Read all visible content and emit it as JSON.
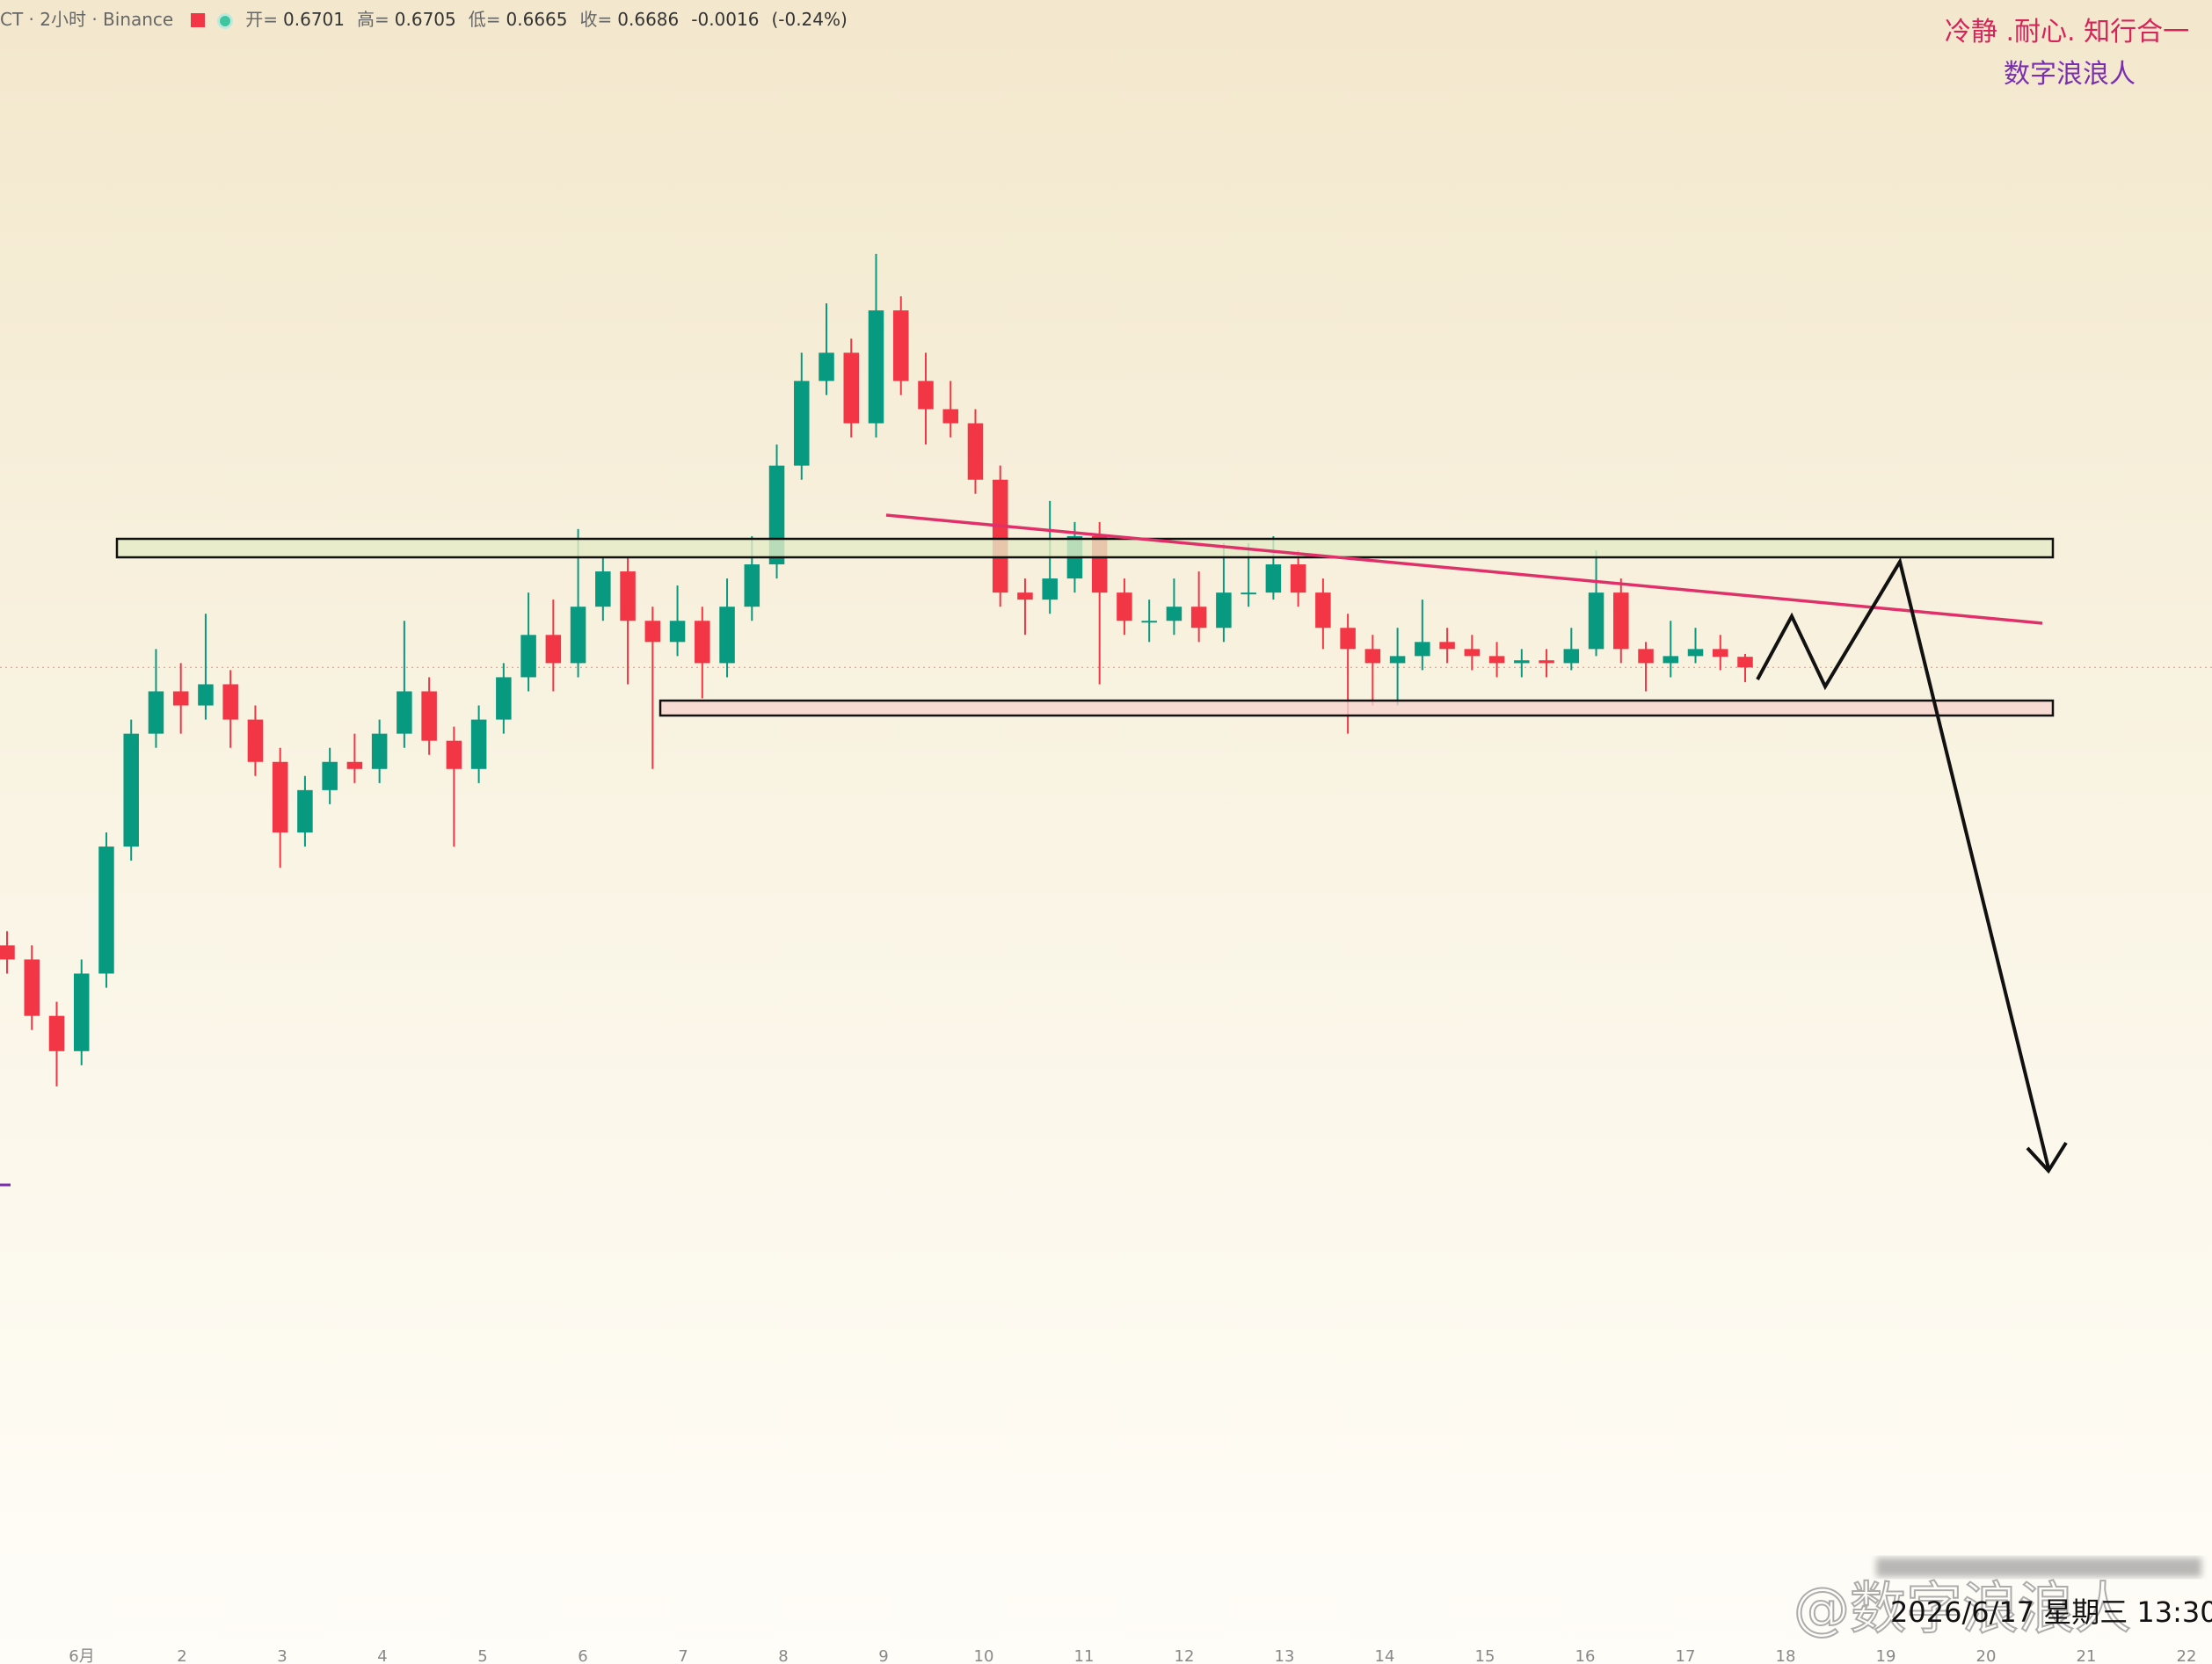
{
  "chart_data": {
    "type": "candlestick",
    "symbol": "CT · 2小时 · Binance",
    "legend_labels": {
      "open": "开=",
      "high": "高=",
      "low": "低=",
      "close": "收="
    },
    "change": -0.0016,
    "change_pct": {
      "value": -0.24,
      "label": "(-0.24%)"
    },
    "x_labels": [
      "6月",
      "2",
      "3",
      "4",
      "5",
      "6",
      "7",
      "8",
      "9",
      "10",
      "11",
      "12",
      "13",
      "14",
      "15",
      "16",
      "17",
      "18",
      "19",
      "20",
      "21",
      "22"
    ],
    "open": [
      0.6292,
      0.6272,
      0.6192,
      0.6142,
      0.6252,
      0.6432,
      0.6592,
      0.6652,
      0.6632,
      0.6662,
      0.6612,
      0.6552,
      0.6452,
      0.6512,
      0.6552,
      0.6542,
      0.6592,
      0.6652,
      0.6582,
      0.6542,
      0.6612,
      0.6672,
      0.6732,
      0.6692,
      0.6772,
      0.6822,
      0.6752,
      0.6722,
      0.6752,
      0.6692,
      0.6772,
      0.6832,
      0.6972,
      0.7092,
      0.7132,
      0.7032,
      0.7192,
      0.7092,
      0.7052,
      0.7032,
      0.6952,
      0.6792,
      0.6782,
      0.6812,
      0.6872,
      0.6792,
      0.6752,
      0.6752,
      0.6772,
      0.6742,
      0.6792,
      0.6792,
      0.6832,
      0.6792,
      0.6742,
      0.6712,
      0.6692,
      0.6702,
      0.6722,
      0.6712,
      0.6702,
      0.6692,
      0.6696,
      0.6692,
      0.6712,
      0.6792,
      0.6712,
      0.6692,
      0.6702,
      0.6712,
      0.6701
    ],
    "high": [
      0.6312,
      0.6292,
      0.6212,
      0.6272,
      0.6452,
      0.6612,
      0.6712,
      0.6692,
      0.6762,
      0.6682,
      0.6632,
      0.6572,
      0.6532,
      0.6572,
      0.6592,
      0.6612,
      0.6752,
      0.6672,
      0.6602,
      0.6632,
      0.6692,
      0.6792,
      0.6782,
      0.6882,
      0.6842,
      0.6842,
      0.6772,
      0.6802,
      0.6772,
      0.6812,
      0.6872,
      0.7002,
      0.7132,
      0.7202,
      0.7152,
      0.7272,
      0.7212,
      0.7132,
      0.7092,
      0.7052,
      0.6972,
      0.6812,
      0.6922,
      0.6892,
      0.6892,
      0.6812,
      0.6782,
      0.6812,
      0.6822,
      0.6862,
      0.6862,
      0.6872,
      0.6852,
      0.6812,
      0.6762,
      0.6732,
      0.6742,
      0.6782,
      0.6742,
      0.6732,
      0.6722,
      0.6712,
      0.6712,
      0.6742,
      0.6852,
      0.6812,
      0.6722,
      0.6752,
      0.6742,
      0.6732,
      0.6705
    ],
    "low": [
      0.6252,
      0.6172,
      0.6092,
      0.6122,
      0.6232,
      0.6412,
      0.6572,
      0.6592,
      0.6612,
      0.6572,
      0.6532,
      0.6402,
      0.6432,
      0.6492,
      0.6522,
      0.6522,
      0.6572,
      0.6562,
      0.6432,
      0.6522,
      0.6592,
      0.6652,
      0.6652,
      0.6672,
      0.6752,
      0.6662,
      0.6542,
      0.6702,
      0.6642,
      0.6672,
      0.6752,
      0.6812,
      0.6952,
      0.7072,
      0.7012,
      0.7012,
      0.7072,
      0.7002,
      0.7012,
      0.6932,
      0.6772,
      0.6732,
      0.6762,
      0.6792,
      0.6662,
      0.6732,
      0.6722,
      0.6732,
      0.6722,
      0.6722,
      0.6772,
      0.6782,
      0.6772,
      0.6712,
      0.6592,
      0.6632,
      0.6632,
      0.6682,
      0.6692,
      0.6682,
      0.6672,
      0.6672,
      0.6672,
      0.6682,
      0.6702,
      0.6692,
      0.6652,
      0.6672,
      0.6692,
      0.6682,
      0.6665
    ],
    "close": [
      0.6272,
      0.6192,
      0.6142,
      0.6252,
      0.6432,
      0.6592,
      0.6652,
      0.6632,
      0.6662,
      0.6612,
      0.6552,
      0.6452,
      0.6512,
      0.6552,
      0.6542,
      0.6592,
      0.6652,
      0.6582,
      0.6542,
      0.6612,
      0.6672,
      0.6732,
      0.6692,
      0.6772,
      0.6822,
      0.6752,
      0.6722,
      0.6752,
      0.6692,
      0.6772,
      0.6832,
      0.6972,
      0.7092,
      0.7132,
      0.7032,
      0.7192,
      0.7092,
      0.7052,
      0.7032,
      0.6952,
      0.6792,
      0.6782,
      0.6812,
      0.6872,
      0.6792,
      0.6752,
      0.6752,
      0.6772,
      0.6742,
      0.6792,
      0.6792,
      0.6832,
      0.6792,
      0.6742,
      0.6712,
      0.6692,
      0.6702,
      0.6722,
      0.6712,
      0.6702,
      0.6692,
      0.6696,
      0.6692,
      0.6712,
      0.6792,
      0.6712,
      0.6692,
      0.6702,
      0.6712,
      0.6701,
      0.6686
    ],
    "ylim": [
      0.5282,
      0.7632
    ],
    "up_color": "#089981",
    "down_color": "#f23645"
  },
  "watermark": {
    "motto": "冷静 .耐心. 知行合一",
    "author": "数字浪浪人",
    "timestamp": "2026/6/17 星期三 13:30",
    "weibo": "@数字浪浪人"
  }
}
